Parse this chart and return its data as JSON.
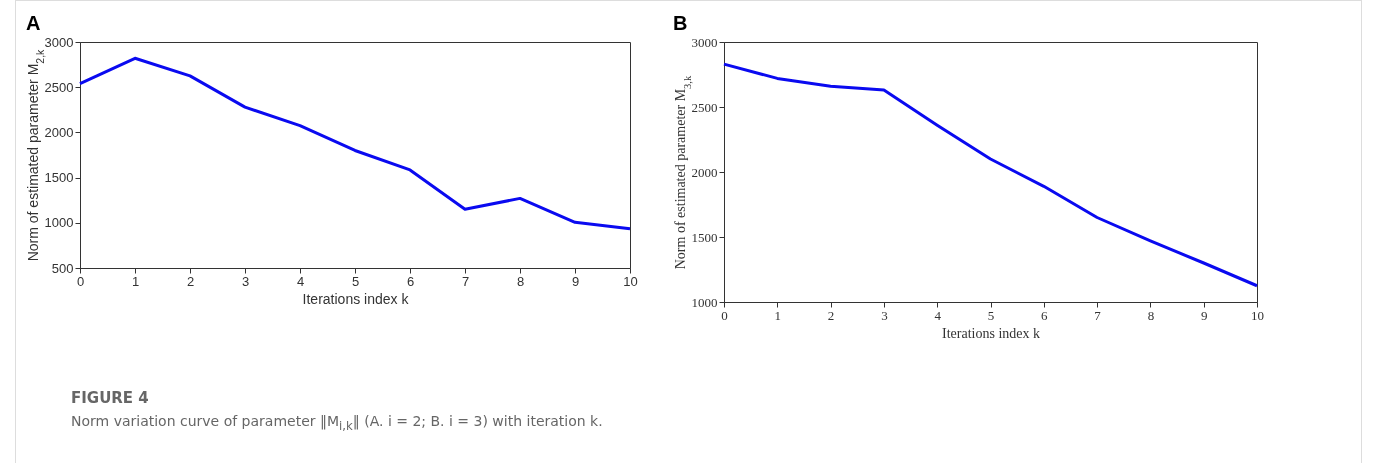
{
  "chart_data": [
    {
      "type": "line",
      "title": "A",
      "xlabel": "Iterations index k",
      "ylabel": "Norm of estimated parameter M$_{2,k}$",
      "x": [
        0,
        1,
        2,
        3,
        4,
        5,
        6,
        7,
        8,
        9,
        10
      ],
      "xlim": [
        0,
        10
      ],
      "xticks": [
        0,
        1,
        2,
        3,
        4,
        5,
        6,
        7,
        8,
        9,
        10
      ],
      "ylim": [
        500,
        3000
      ],
      "yticks": [
        500,
        1000,
        1500,
        2000,
        2500,
        3000
      ],
      "series": [
        {
          "color": "#0a0af0",
          "values": [
            2540,
            2820,
            2625,
            2280,
            2075,
            1800,
            1585,
            1150,
            1270,
            1005,
            935
          ]
        }
      ],
      "annotations": [
        "FIGURE 4",
        "Norm variation curve of parameter ‖M$_{i,k}$‖ (A. i = 2; B. i = 3) with iteration k."
      ]
    },
    {
      "type": "line",
      "title": "B",
      "xlabel": "Iterations index k",
      "ylabel": "Norm of estimated parameter M$_{3,k}$",
      "x": [
        0,
        1,
        2,
        3,
        4,
        5,
        6,
        7,
        8,
        9,
        10
      ],
      "xlim": [
        0,
        10
      ],
      "xticks": [
        0,
        1,
        2,
        3,
        4,
        5,
        6,
        7,
        8,
        9,
        10
      ],
      "ylim": [
        1000,
        3000
      ],
      "yticks": [
        1000,
        1500,
        2000,
        2500,
        3000
      ],
      "series": [
        {
          "color": "#0a0af0",
          "values": [
            2830,
            2720,
            2660,
            2630,
            2360,
            2100,
            1890,
            1650,
            1470,
            1300,
            1125
          ]
        }
      ]
    }
  ]
}
